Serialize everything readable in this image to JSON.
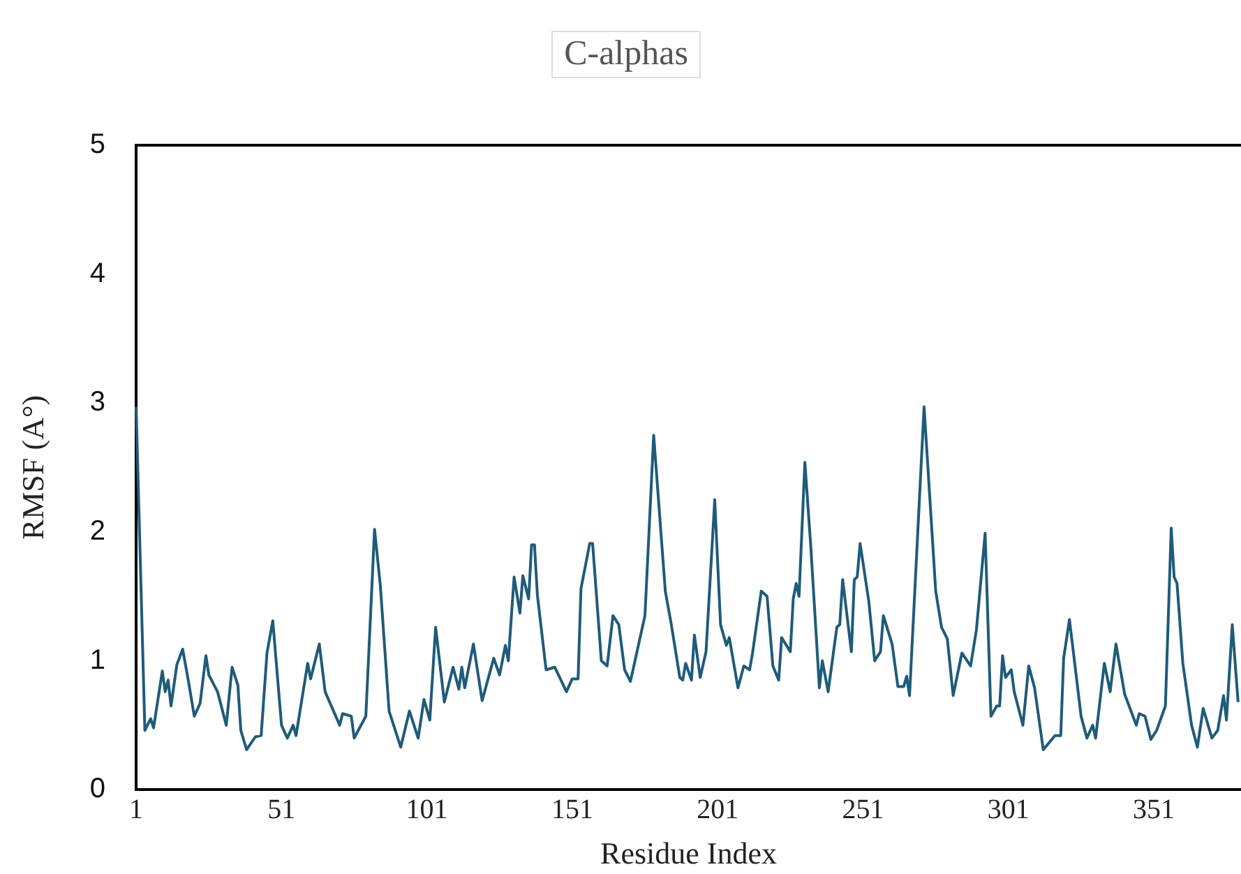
{
  "chart_data": {
    "type": "line",
    "title": "C-alphas",
    "xlabel": "Residue Index",
    "ylabel": "RMSF (A°)",
    "xlim": [
      1,
      381
    ],
    "xticks": [
      1,
      51,
      101,
      151,
      201,
      251,
      301,
      351
    ],
    "ylim": [
      0,
      5
    ],
    "yticks": [
      0,
      1,
      2,
      3,
      4,
      5
    ],
    "grid": false,
    "legend": false,
    "marker": "none",
    "series": [
      {
        "color": "#1f5b7a",
        "x": [
          1,
          4,
          6,
          7,
          10,
          11,
          12,
          13,
          15,
          17,
          19,
          21,
          23,
          25,
          26,
          29,
          32,
          34,
          36,
          37,
          39,
          42,
          44,
          46,
          48,
          51,
          53,
          55,
          56,
          60,
          61,
          64,
          66,
          71,
          72,
          75,
          76,
          80,
          83,
          85,
          88,
          92,
          95,
          98,
          100,
          102,
          104,
          107,
          110,
          112,
          113,
          114,
          117,
          120,
          124,
          126,
          128,
          129,
          131,
          133,
          134,
          136,
          137,
          138,
          139,
          142,
          145,
          149,
          151,
          153,
          154,
          157,
          158,
          161,
          163,
          165,
          167,
          169,
          171,
          176,
          179,
          183,
          185,
          188,
          189,
          190,
          192,
          193,
          195,
          197,
          200,
          202,
          204,
          205,
          208,
          210,
          212,
          213,
          216,
          218,
          220,
          222,
          223,
          226,
          227,
          228,
          229,
          231,
          233,
          236,
          237,
          239,
          242,
          243,
          244,
          247,
          248,
          249,
          250,
          253,
          255,
          257,
          258,
          261,
          263,
          265,
          266,
          267,
          272,
          276,
          278,
          280,
          282,
          285,
          288,
          290,
          293,
          295,
          297,
          298,
          299,
          300,
          302,
          303,
          306,
          308,
          310,
          313,
          317,
          319,
          320,
          322,
          326,
          328,
          330,
          331,
          334,
          336,
          338,
          341,
          345,
          346,
          348,
          350,
          352,
          355,
          357,
          358,
          359,
          361,
          364,
          366,
          368,
          371,
          373,
          375,
          376,
          378,
          380
        ],
        "values": [
          2.97,
          0.46,
          0.55,
          0.48,
          0.92,
          0.76,
          0.85,
          0.65,
          0.97,
          1.09,
          0.84,
          0.57,
          0.67,
          1.04,
          0.89,
          0.76,
          0.5,
          0.95,
          0.81,
          0.46,
          0.31,
          0.41,
          0.42,
          1.06,
          1.31,
          0.5,
          0.4,
          0.5,
          0.42,
          0.98,
          0.86,
          1.13,
          0.76,
          0.5,
          0.59,
          0.57,
          0.4,
          0.57,
          2.02,
          1.58,
          0.61,
          0.33,
          0.61,
          0.4,
          0.7,
          0.54,
          1.26,
          0.68,
          0.95,
          0.78,
          0.95,
          0.79,
          1.13,
          0.69,
          1.02,
          0.89,
          1.12,
          1.0,
          1.65,
          1.37,
          1.66,
          1.48,
          1.9,
          1.9,
          1.51,
          0.93,
          0.95,
          0.76,
          0.86,
          0.86,
          1.56,
          1.91,
          1.91,
          1.0,
          0.96,
          1.35,
          1.28,
          0.93,
          0.84,
          1.35,
          2.75,
          1.54,
          1.29,
          0.87,
          0.85,
          0.98,
          0.85,
          1.2,
          0.87,
          1.07,
          2.25,
          1.28,
          1.12,
          1.18,
          0.79,
          0.96,
          0.93,
          1.06,
          1.54,
          1.5,
          0.96,
          0.85,
          1.18,
          1.07,
          1.48,
          1.6,
          1.5,
          2.54,
          1.9,
          0.79,
          1.0,
          0.76,
          1.26,
          1.28,
          1.63,
          1.07,
          1.63,
          1.65,
          1.91,
          1.46,
          1.0,
          1.07,
          1.35,
          1.13,
          0.8,
          0.8,
          0.88,
          0.73,
          2.97,
          1.54,
          1.26,
          1.17,
          0.73,
          1.06,
          0.96,
          1.24,
          1.99,
          0.57,
          0.65,
          0.65,
          1.04,
          0.87,
          0.93,
          0.76,
          0.5,
          0.96,
          0.79,
          0.31,
          0.42,
          0.42,
          1.02,
          1.32,
          0.57,
          0.4,
          0.5,
          0.4,
          0.98,
          0.76,
          1.13,
          0.74,
          0.5,
          0.59,
          0.57,
          0.39,
          0.46,
          0.65,
          2.03,
          1.65,
          1.6,
          0.98,
          0.5,
          0.33,
          0.63,
          0.4,
          0.46,
          0.73,
          0.54,
          1.28,
          0.68
        ]
      }
    ]
  }
}
